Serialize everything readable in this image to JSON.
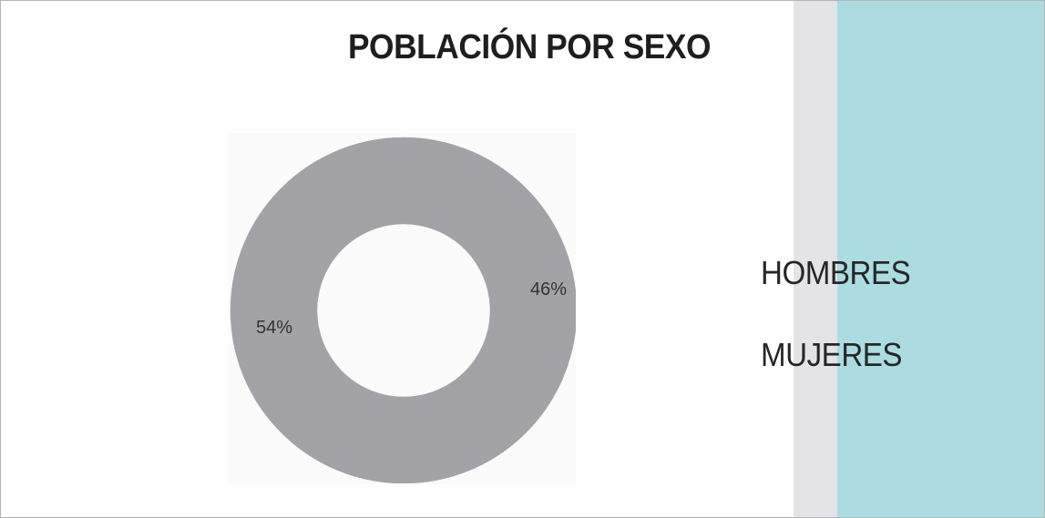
{
  "colors": {
    "slice": "#a3a3a7",
    "band_gray": "#e4e4e6",
    "band_teal": "#abdce1"
  },
  "chart_data": {
    "type": "pie",
    "title": "POBLACIÓN POR SEXO",
    "categories": [
      "HOMBRES",
      "MUJERES"
    ],
    "values": [
      46,
      54
    ],
    "labels": [
      "46%",
      "54%"
    ],
    "donut": true,
    "legend": "right"
  }
}
